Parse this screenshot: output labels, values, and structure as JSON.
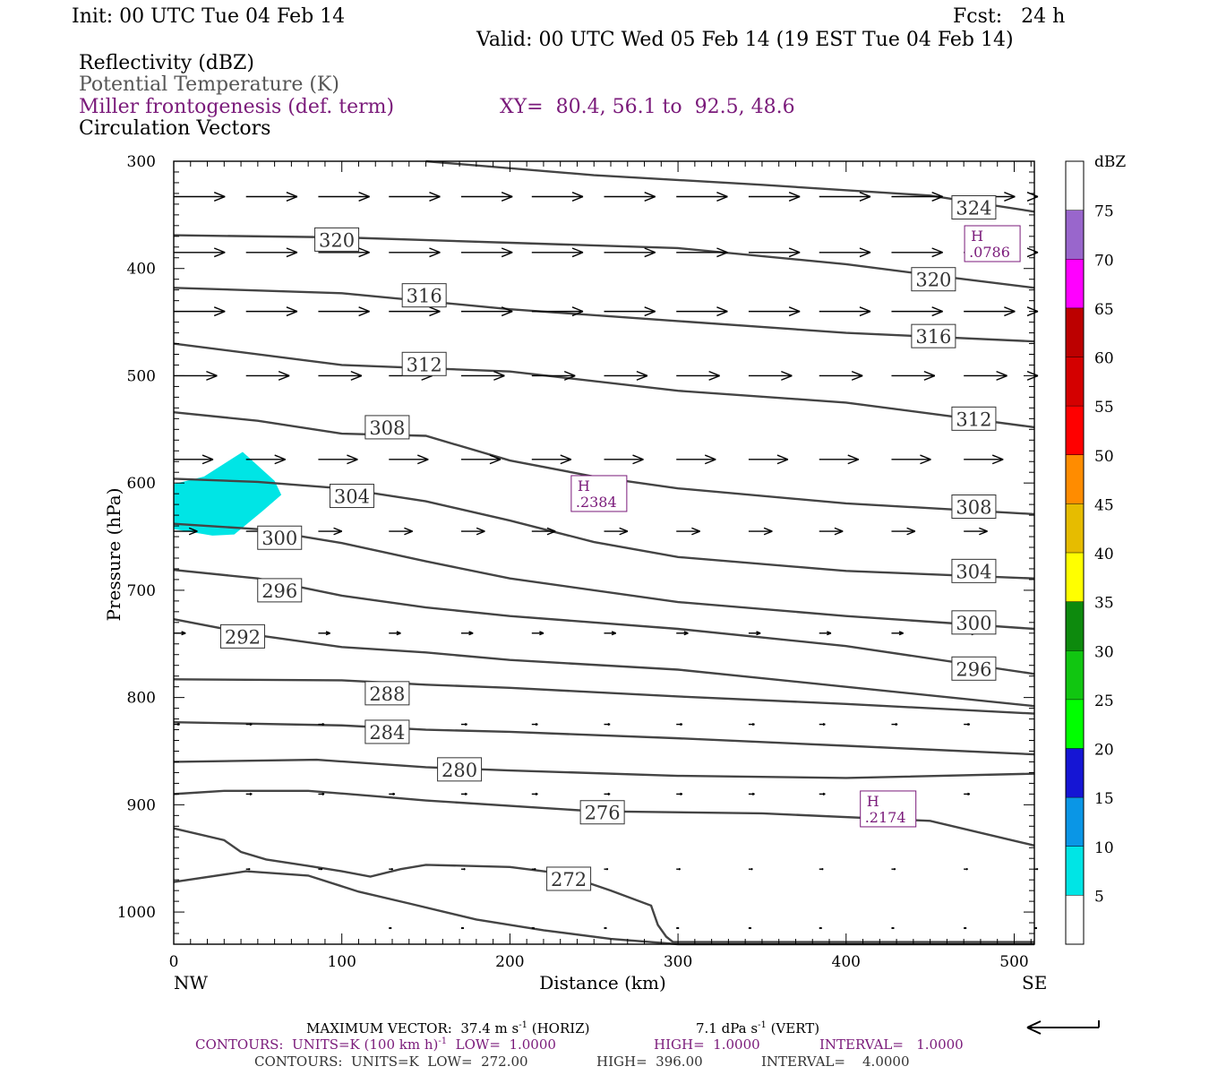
{
  "header": {
    "init": "Init: 00 UTC Tue 04 Feb 14",
    "fcst": "Fcst:   24 h",
    "valid": "Valid: 00 UTC Wed 05 Feb 14 (19 EST Tue 04 Feb 14)"
  },
  "fields": {
    "reflectivity": "Reflectivity (dBZ)",
    "theta": "Potential Temperature (K)",
    "frontogenesis": "Miller frontogenesis (def. term)",
    "xy": "XY=  80.4, 56.1 to  92.5, 48.6",
    "circulation": "Circulation Vectors"
  },
  "colors": {
    "theta": "#444444",
    "front": "#7a1a7a",
    "refl5": "#00e5e5"
  },
  "chart_data": {
    "type": "line",
    "xlabel": "Distance (km)",
    "ylabel": "Pressure (hPa)",
    "xlim": [
      0,
      512
    ],
    "ylim": [
      1030,
      300
    ],
    "xticks": [
      0,
      100,
      200,
      300,
      400,
      500
    ],
    "yticks": [
      300,
      400,
      500,
      600,
      700,
      800,
      900,
      1000
    ],
    "x_end_labels": {
      "left": "NW",
      "right": "SE"
    },
    "grid": false,
    "isentropes": [
      {
        "label": "324",
        "points": [
          [
            150,
            300
          ],
          [
            250,
            313
          ],
          [
            350,
            322
          ],
          [
            450,
            332
          ],
          [
            512,
            347
          ]
        ],
        "label_at": [
          [
            476,
            343
          ]
        ]
      },
      {
        "label": "320",
        "points": [
          [
            0,
            369
          ],
          [
            100,
            371
          ],
          [
            200,
            376
          ],
          [
            300,
            381
          ],
          [
            400,
            396
          ],
          [
            450,
            406
          ],
          [
            512,
            418
          ]
        ],
        "label_at": [
          [
            97,
            373
          ],
          [
            452,
            410
          ]
        ]
      },
      {
        "label": "316",
        "points": [
          [
            0,
            418
          ],
          [
            100,
            423
          ],
          [
            200,
            438
          ],
          [
            300,
            449
          ],
          [
            400,
            460
          ],
          [
            512,
            468
          ]
        ],
        "label_at": [
          [
            149,
            425
          ],
          [
            452,
            463
          ]
        ]
      },
      {
        "label": "312",
        "points": [
          [
            0,
            470
          ],
          [
            100,
            490
          ],
          [
            200,
            496
          ],
          [
            300,
            514
          ],
          [
            400,
            525
          ],
          [
            512,
            548
          ]
        ],
        "label_at": [
          [
            149,
            489
          ],
          [
            476,
            540
          ]
        ]
      },
      {
        "label": "308",
        "points": [
          [
            0,
            534
          ],
          [
            50,
            542
          ],
          [
            100,
            554
          ],
          [
            150,
            556
          ],
          [
            200,
            579
          ],
          [
            250,
            594
          ],
          [
            300,
            605
          ],
          [
            400,
            619
          ],
          [
            512,
            629
          ]
        ],
        "label_at": [
          [
            127,
            548
          ],
          [
            476,
            622
          ]
        ]
      },
      {
        "label": "304",
        "points": [
          [
            0,
            596
          ],
          [
            50,
            599
          ],
          [
            100,
            605
          ],
          [
            150,
            617
          ],
          [
            200,
            635
          ],
          [
            250,
            655
          ],
          [
            300,
            669
          ],
          [
            400,
            682
          ],
          [
            512,
            689
          ]
        ],
        "label_at": [
          [
            106,
            612
          ],
          [
            476,
            682
          ]
        ]
      },
      {
        "label": "300",
        "points": [
          [
            0,
            638
          ],
          [
            50,
            643
          ],
          [
            100,
            656
          ],
          [
            150,
            673
          ],
          [
            200,
            689
          ],
          [
            300,
            711
          ],
          [
            400,
            724
          ],
          [
            512,
            736
          ]
        ],
        "label_at": [
          [
            63,
            651
          ],
          [
            476,
            730
          ]
        ]
      },
      {
        "label": "296",
        "points": [
          [
            0,
            681
          ],
          [
            50,
            689
          ],
          [
            100,
            705
          ],
          [
            150,
            716
          ],
          [
            200,
            724
          ],
          [
            300,
            736
          ],
          [
            400,
            752
          ],
          [
            512,
            778
          ]
        ],
        "label_at": [
          [
            63,
            700
          ],
          [
            476,
            773
          ]
        ]
      },
      {
        "label": "292",
        "points": [
          [
            0,
            727
          ],
          [
            50,
            742
          ],
          [
            100,
            753
          ],
          [
            150,
            758
          ],
          [
            200,
            765
          ],
          [
            300,
            774
          ],
          [
            400,
            790
          ],
          [
            512,
            808
          ]
        ],
        "label_at": [
          [
            41,
            743
          ]
        ]
      },
      {
        "label": "288",
        "points": [
          [
            0,
            783
          ],
          [
            100,
            784
          ],
          [
            150,
            788
          ],
          [
            200,
            791
          ],
          [
            300,
            799
          ],
          [
            400,
            806
          ],
          [
            512,
            815
          ]
        ],
        "label_at": [
          [
            127,
            796
          ]
        ]
      },
      {
        "label": "284",
        "points": [
          [
            0,
            823
          ],
          [
            100,
            826
          ],
          [
            150,
            830
          ],
          [
            200,
            832
          ],
          [
            300,
            838
          ],
          [
            400,
            845
          ],
          [
            512,
            853
          ]
        ],
        "label_at": [
          [
            127,
            832
          ]
        ]
      },
      {
        "label": "280",
        "points": [
          [
            0,
            860
          ],
          [
            85,
            858
          ],
          [
            150,
            865
          ],
          [
            200,
            868
          ],
          [
            300,
            873
          ],
          [
            400,
            875
          ],
          [
            512,
            871
          ]
        ],
        "label_at": [
          [
            170,
            867
          ]
        ]
      },
      {
        "label": "276",
        "points": [
          [
            0,
            890
          ],
          [
            30,
            887
          ],
          [
            80,
            887
          ],
          [
            120,
            892
          ],
          [
            150,
            896
          ],
          [
            250,
            906
          ],
          [
            350,
            908
          ],
          [
            450,
            915
          ],
          [
            512,
            938
          ]
        ],
        "label_at": [
          [
            255,
            907
          ]
        ]
      },
      {
        "label": "272",
        "points": [
          [
            0,
            922
          ],
          [
            30,
            933
          ],
          [
            40,
            944
          ],
          [
            55,
            951
          ],
          [
            80,
            957
          ],
          [
            100,
            962
          ],
          [
            117,
            967
          ],
          [
            135,
            960
          ],
          [
            150,
            956
          ],
          [
            200,
            958
          ],
          [
            230,
            964
          ],
          [
            260,
            980
          ],
          [
            284,
            994
          ],
          [
            288,
            1012
          ],
          [
            293,
            1023
          ],
          [
            297,
            1028
          ],
          [
            512,
            1028
          ]
        ],
        "label_at": [
          [
            235,
            969
          ]
        ]
      },
      {
        "label": "",
        "points": [
          [
            0,
            972
          ],
          [
            43,
            962
          ],
          [
            80,
            966
          ],
          [
            110,
            981
          ],
          [
            140,
            992
          ],
          [
            180,
            1007
          ],
          [
            220,
            1017
          ],
          [
            260,
            1025
          ],
          [
            300,
            1030
          ],
          [
            512,
            1030
          ]
        ],
        "label_at": []
      }
    ],
    "frontogenesis_maxima": [
      {
        "label": "H",
        "value": ".2384",
        "x": 253,
        "p": 609
      },
      {
        "label": "H",
        "value": ".2174",
        "x": 425,
        "p": 903
      },
      {
        "label": "H",
        "value": ".0786",
        "x": 487,
        "p": 376
      }
    ],
    "reflectivity_region": {
      "dbz": 5,
      "points": [
        [
          0,
          601
        ],
        [
          18,
          594
        ],
        [
          41,
          571
        ],
        [
          60,
          598
        ],
        [
          64,
          611
        ],
        [
          53,
          626
        ],
        [
          36,
          648
        ],
        [
          23,
          649
        ],
        [
          0,
          643
        ]
      ]
    },
    "vectors": [
      {
        "p": 333,
        "x": [
          0,
          86,
          171,
          256,
          342,
          427,
          512
        ],
        "dx": 26,
        "dp": 0
      },
      {
        "p": 333,
        "x": [
          43,
          128,
          213,
          299,
          384,
          470
        ],
        "dx": 26,
        "dp": 0
      },
      {
        "p": 385,
        "x": [
          0,
          43,
          86,
          128,
          171,
          213,
          256,
          299,
          342,
          384,
          427,
          470,
          512
        ],
        "dx": 26,
        "dp": 0
      },
      {
        "p": 440,
        "x": [
          0,
          43,
          86,
          128,
          171,
          213,
          256,
          299,
          342,
          384,
          427,
          470,
          512
        ],
        "dx": 26,
        "dp": 0
      },
      {
        "p": 500,
        "x": [
          0,
          43,
          86,
          128,
          171,
          213,
          256,
          299,
          342,
          384,
          427,
          470,
          512
        ],
        "dx": 22,
        "dp": 0
      },
      {
        "p": 578,
        "x": [
          0,
          43,
          86,
          128,
          171,
          213,
          256,
          299,
          342,
          384,
          427,
          470
        ],
        "dx": 20,
        "dp": 0
      },
      {
        "p": 645,
        "x": [
          0,
          43,
          86,
          128,
          171,
          213,
          256,
          299,
          342,
          384,
          427,
          470
        ],
        "dx": 12,
        "dp": 0
      },
      {
        "p": 740,
        "x": [
          0,
          43,
          86,
          128,
          171,
          213,
          256,
          299,
          342,
          384,
          427,
          470
        ],
        "dx": 6,
        "dp": 0
      },
      {
        "p": 825,
        "x": [
          0,
          43,
          86,
          128,
          171,
          213,
          256,
          299,
          342,
          384,
          427,
          470
        ],
        "dx": 3,
        "dp": 0
      },
      {
        "p": 890,
        "x": [
          43,
          86,
          128,
          171,
          213,
          256,
          299,
          342,
          384,
          427,
          470
        ],
        "dx": 3,
        "dp": 0
      },
      {
        "p": 960,
        "x": [
          43,
          86,
          128,
          171,
          213,
          256,
          299,
          342,
          384,
          427,
          470,
          512
        ],
        "dx": 2,
        "dp": 0
      },
      {
        "p": 1015,
        "x": [
          128,
          171,
          213,
          256,
          299,
          342,
          384,
          427,
          470,
          512
        ],
        "dx": 1,
        "dp": 0
      }
    ],
    "colorbar": {
      "title": "dBZ",
      "levels": [
        5,
        10,
        15,
        20,
        25,
        30,
        35,
        40,
        45,
        50,
        55,
        60,
        65,
        70,
        75
      ],
      "colors": [
        "#ffffff",
        "#00e5e5",
        "#0a96e6",
        "#1515d4",
        "#00ff00",
        "#11c611",
        "#0d8a0d",
        "#ffff00",
        "#e6bc00",
        "#ff8c00",
        "#ff0000",
        "#d40000",
        "#bc0000",
        "#ff00ff",
        "#9966cc",
        "#ffffff"
      ]
    }
  },
  "footer": {
    "line1_left": "MAXIMUM VECTOR:  37.4 m s",
    "line1_sup1": "-1",
    "line1_mid": " (HORIZ)",
    "line1_right": "7.1 dPa s",
    "line1_sup2": "-1",
    "line1_end": " (VERT)",
    "line2_a": "CONTOURS:  UNITS=K (100 km h)",
    "line2_sup": "-1",
    "line2_b": "  LOW=  1.0000",
    "line2_c": "HIGH=  1.0000",
    "line2_d": "INTERVAL=   1.0000",
    "line3_a": "CONTOURS:  UNITS=K  LOW=  272.00",
    "line3_b": "HIGH=  396.00",
    "line3_c": "INTERVAL=    4.0000"
  }
}
